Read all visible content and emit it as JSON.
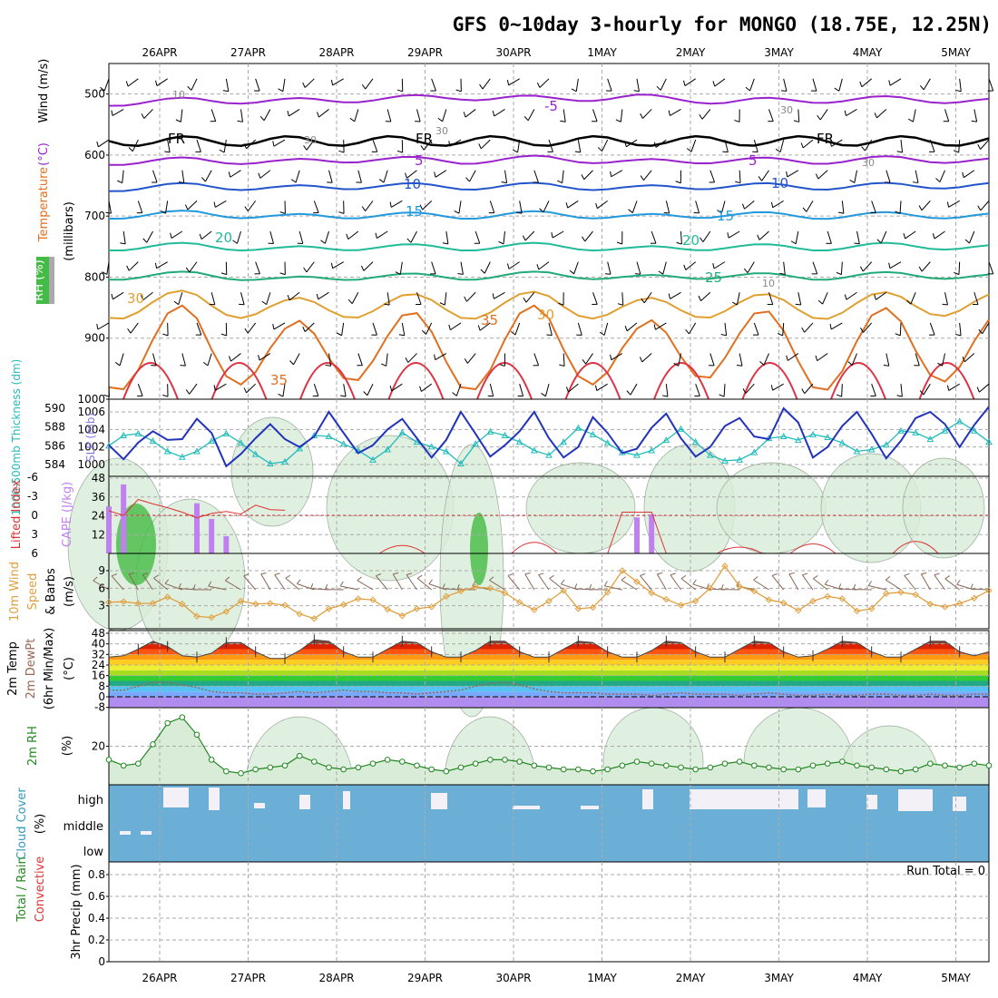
{
  "title": "GFS 0~10day 3-hourly for MONGO (18.75E, 12.25N)",
  "colors": {
    "grid": "#aaaaaa",
    "rh_fill": "#d8ecd8",
    "rh_dark": "#44bb44",
    "freezing": "#000000",
    "wind_barb": "#000000",
    "cloud": "#6baed6",
    "cloud_clear": "#f4f0f8",
    "slp": "#2233bb",
    "thickness": "#22bbbb",
    "cape": "#c080f0",
    "lifted": "#dd3333",
    "wind10": "#e0a040",
    "barb10": "#886655",
    "rh2m": "#228822",
    "dewpt": "#996655"
  },
  "chart_data": [
    {
      "type": "line",
      "name": "upper",
      "title": "GFS 0~10day 3-hourly for MONGO (18.75E, 12.25N)",
      "x_tick_labels": [
        "26APR",
        "27APR",
        "28APR",
        "29APR",
        "30APR",
        "1MAY",
        "2MAY",
        "3MAY",
        "4MAY",
        "5MAY"
      ],
      "ylabel_parts": [
        "RH (%)",
        "Temperature",
        "(°C)",
        "Wind (m/s)"
      ],
      "ylabel_units": "(millibars)",
      "yticks": [
        "500",
        "600",
        "700",
        "800",
        "900",
        "1000"
      ],
      "ylim": [
        450,
        1000
      ],
      "y_inverted": true,
      "contour_labels": {
        "temperature": [
          "-5",
          "5",
          "10",
          "15",
          "20",
          "25",
          "30",
          "35",
          "5",
          "10",
          "15",
          "20",
          "25",
          "30",
          "35"
        ],
        "freezing": [
          "FR",
          "FR",
          "FR"
        ],
        "rh": [
          "10",
          "30",
          "30",
          "30",
          "30",
          "10"
        ]
      },
      "temperature_isotherms": [
        {
          "label": "-5",
          "p": [
            515,
            510,
            512,
            508,
            505,
            508,
            505,
            512,
            510,
            508,
            512
          ],
          "color": "#9922cc"
        },
        {
          "label": "5",
          "p": [
            612,
            608,
            612,
            606,
            610,
            605,
            612,
            608,
            610,
            606,
            610
          ],
          "color": "#9922cc"
        },
        {
          "label": "10",
          "p": [
            655,
            650,
            655,
            650,
            652,
            650,
            655,
            650,
            652,
            650,
            650
          ],
          "color": "#2255cc"
        },
        {
          "label": "15",
          "p": [
            700,
            695,
            702,
            698,
            700,
            696,
            702,
            697,
            700,
            698,
            700
          ],
          "color": "#2299dd"
        },
        {
          "label": "20",
          "p": [
            752,
            748,
            755,
            750,
            752,
            748,
            755,
            750,
            752,
            748,
            752
          ],
          "color": "#22bb99"
        },
        {
          "label": "25",
          "p": [
            800,
            795,
            805,
            798,
            800,
            795,
            802,
            797,
            800,
            796,
            800
          ],
          "color": "#22aa77"
        },
        {
          "label": "30",
          "p": [
            850,
            840,
            855,
            845,
            850,
            842,
            855,
            845,
            850,
            843,
            845
          ],
          "color": "#e0a030"
        },
        {
          "label": "35",
          "p": [
            930,
            900,
            935,
            905,
            930,
            900,
            935,
            900,
            930,
            905,
            920
          ],
          "color": "#e07020"
        }
      ]
    },
    {
      "type": "line",
      "name": "slp_thickness",
      "ylabel_left": "1000-500mb Thickness (dm)",
      "ylabel_right": "SLP (mb)",
      "yticks_left": [
        "584",
        "586",
        "588",
        "590"
      ],
      "yticks_right": [
        "1000",
        "1002",
        "1004",
        "1006"
      ],
      "series": [
        {
          "name": "SLP (mb)",
          "values": [
            1002.2,
            1000.6,
            1002.5,
            1003.8,
            1002.8,
            1002.9,
            1005.2,
            1003.6,
            999.8,
            1001.2,
            1003.0,
            1004.6,
            1002.9,
            1002.0,
            1003.2,
            1006.0,
            1003.6,
            1001.3,
            1002.2,
            1004.0,
            1005.2,
            1003.0,
            1000.8,
            1002.8,
            1006.0,
            1003.5,
            1000.9,
            1002.2,
            1003.8,
            1006.0,
            1003.0,
            1000.8,
            1002.0,
            1005.4,
            1003.6,
            1001.3,
            1001.8,
            1004.2,
            1005.8,
            1003.0,
            1000.9,
            1002.0,
            1004.4,
            1005.3,
            1003.2,
            1002.9,
            1006.4,
            1004.8,
            1000.8,
            1002.0,
            1004.4,
            1006.0,
            1003.5,
            1000.7,
            1002.7,
            1005.3,
            1006.0,
            1004.6,
            1002.0,
            1004.5,
            1006.6
          ]
        },
        {
          "name": "1000-500mb Thickness (dm)",
          "values": [
            586.0,
            587.1,
            587.3,
            586.5,
            585.4,
            584.8,
            585.4,
            586.5,
            587.3,
            586.3,
            585.1,
            584.1,
            584.3,
            585.7,
            587.1,
            587.0,
            586.2,
            585.5,
            584.5,
            585.6,
            587.4,
            586.4,
            585.9,
            585.4,
            584.1,
            586.2,
            587.5,
            587.1,
            586.4,
            585.5,
            585.0,
            586.4,
            587.9,
            587.2,
            586.3,
            585.3,
            585.0,
            585.5,
            586.6,
            587.8,
            586.4,
            585.0,
            584.4,
            584.5,
            585.3,
            586.8,
            587.0,
            586.6,
            587.2,
            586.9,
            586.3,
            585.4,
            585.6,
            586.1,
            587.6,
            587.4,
            586.7,
            587.6,
            588.6,
            587.6,
            586.4
          ]
        }
      ]
    },
    {
      "type": "bar",
      "name": "cape_li",
      "ylabel_left": "Lifted Index",
      "ylabel_right": "CAPE (J/kg)",
      "yticks_left": [
        "-6",
        "-3",
        "0",
        "3",
        "6"
      ],
      "yticks_right": [
        "12",
        "24",
        "36",
        "48"
      ],
      "series": [
        {
          "name": "CAPE (J/kg)",
          "values": [
            30,
            44,
            0,
            0,
            0,
            0,
            32,
            22,
            11,
            0,
            0,
            0,
            0,
            0,
            0,
            0,
            0,
            0,
            0,
            0,
            0,
            0,
            0,
            0,
            0,
            0,
            0,
            0,
            0,
            0,
            0,
            0,
            0,
            0,
            0,
            0,
            23,
            25,
            0,
            0,
            0,
            0,
            0,
            0,
            0,
            0,
            0,
            0,
            0,
            0,
            0,
            0,
            0,
            0,
            0,
            0,
            0,
            0,
            0,
            0,
            0
          ]
        },
        {
          "name": "Lifted Index",
          "values": [
            -0.7,
            0,
            -2.5,
            -1.8,
            -1.2,
            -0.5,
            0.4,
            -0.3,
            -0.6,
            -0.2,
            -1.6,
            -0.9,
            -0.8,
            0,
            0,
            0,
            0,
            0,
            0,
            0,
            0,
            0,
            0,
            0,
            0,
            0,
            0,
            0,
            0,
            0,
            0,
            0,
            0,
            0,
            0,
            0,
            0,
            0,
            0,
            0,
            0,
            0,
            0,
            0,
            0,
            0,
            0,
            0,
            0,
            0,
            0,
            0,
            0,
            0,
            0,
            0,
            0,
            0,
            0,
            0,
            0
          ]
        }
      ]
    },
    {
      "type": "line",
      "name": "wind10",
      "ylabel_parts": [
        "10m Wind",
        "Speed",
        "& Barbs"
      ],
      "ylabel_units": "(m/s)",
      "yticks": [
        "3",
        "6",
        "9"
      ],
      "series": [
        {
          "name": "10m Wind Speed (m/s)",
          "values": [
            3.6,
            3.7,
            3.4,
            3.4,
            4.5,
            3.3,
            1.2,
            1.0,
            2.0,
            3.8,
            3.3,
            3.4,
            3.1,
            1.6,
            0.8,
            2.5,
            3.2,
            4.2,
            4.0,
            2.4,
            1.3,
            2.5,
            2.8,
            4.6,
            5.5,
            6.2,
            6.0,
            5.2,
            3.6,
            2.3,
            3.8,
            5.6,
            2.5,
            2.7,
            5.3,
            9.0,
            7.1,
            5.2,
            4.1,
            3.1,
            3.8,
            6.0,
            9.8,
            6.3,
            5.5,
            4.0,
            3.5,
            2.2,
            3.8,
            4.6,
            4.2,
            2.1,
            2.5,
            5.1,
            5.3,
            4.9,
            3.3,
            2.8,
            3.4,
            4.3,
            5.6
          ]
        }
      ]
    },
    {
      "type": "area",
      "name": "temp2m",
      "ylabel_parts": [
        "2m Temp",
        "2m DewPt",
        "(6hr Min/Max)"
      ],
      "ylabel_units": "(°C)",
      "yticks": [
        "-8",
        "0",
        "8",
        "16",
        "24",
        "32",
        "40",
        "48"
      ],
      "series": [
        {
          "name": "2m Temp",
          "values": [
            30,
            31,
            36,
            42,
            38,
            31,
            30,
            33,
            41,
            41,
            34,
            29,
            29,
            35,
            43,
            42,
            34,
            30,
            30,
            36,
            42,
            41,
            34,
            30,
            30,
            35,
            42,
            42,
            34,
            30,
            30,
            36,
            42,
            41,
            34,
            30,
            30,
            35,
            42,
            41,
            34,
            30,
            30,
            36,
            42,
            41,
            34,
            30,
            31,
            36,
            42,
            41,
            34,
            30,
            30,
            36,
            42,
            42,
            34,
            31,
            34
          ]
        },
        {
          "name": "2m DewPt",
          "values": [
            5,
            5,
            8,
            11,
            11,
            9,
            7,
            4,
            3,
            3,
            2,
            2,
            3,
            4,
            3,
            4,
            5,
            4,
            4,
            3,
            3,
            2,
            3,
            4,
            5,
            8,
            10,
            11,
            9,
            6,
            4,
            3,
            3,
            3,
            2,
            2,
            2,
            1,
            2,
            3,
            2,
            2,
            2,
            1,
            2,
            3,
            2,
            1,
            1,
            2,
            1,
            1,
            2,
            2,
            1,
            1,
            2,
            1,
            1,
            2,
            2
          ]
        }
      ]
    },
    {
      "type": "area",
      "name": "rh2m",
      "ylabel_left": "2m RH",
      "ylabel_units": "(%)",
      "yticks": [
        "20"
      ],
      "series": [
        {
          "name": "2m RH (%)",
          "values": [
            13,
            10,
            11,
            21,
            32,
            35,
            26,
            13,
            7,
            6,
            8,
            9,
            10,
            15,
            12,
            9,
            8,
            9,
            11,
            13,
            12,
            10,
            8,
            7,
            9,
            11,
            13,
            13,
            12,
            10,
            9,
            8,
            8,
            7,
            8,
            10,
            12,
            11,
            10,
            9,
            8,
            9,
            11,
            12,
            10,
            9,
            8,
            8,
            10,
            11,
            12,
            10,
            9,
            8,
            7,
            8,
            11,
            10,
            9,
            11,
            10
          ]
        }
      ]
    },
    {
      "type": "table",
      "name": "cloud",
      "ylabel_parts": [
        "Cloud Cover"
      ],
      "ylabel_units": "(%)",
      "yticks": [
        "high",
        "middle",
        "low"
      ]
    },
    {
      "type": "bar",
      "name": "precip",
      "ylabel_parts": [
        "Total / Rain",
        "Convective"
      ],
      "ylabel_units": "3hr Precip (mm)",
      "yticks": [
        "0",
        "0.2",
        "0.4",
        "0.6",
        "0.8"
      ],
      "ylim": [
        0,
        0.9
      ],
      "annotation": "Run Total = 0",
      "series": [
        {
          "name": "3hr Precip (mm)",
          "values": [
            0,
            0,
            0,
            0,
            0,
            0,
            0,
            0,
            0,
            0,
            0,
            0,
            0,
            0,
            0,
            0,
            0,
            0,
            0,
            0,
            0,
            0,
            0,
            0,
            0,
            0,
            0,
            0,
            0,
            0,
            0,
            0,
            0,
            0,
            0,
            0,
            0,
            0,
            0,
            0,
            0,
            0,
            0,
            0,
            0,
            0,
            0,
            0,
            0,
            0,
            0,
            0,
            0,
            0,
            0,
            0,
            0,
            0,
            0,
            0,
            0
          ]
        }
      ]
    }
  ]
}
